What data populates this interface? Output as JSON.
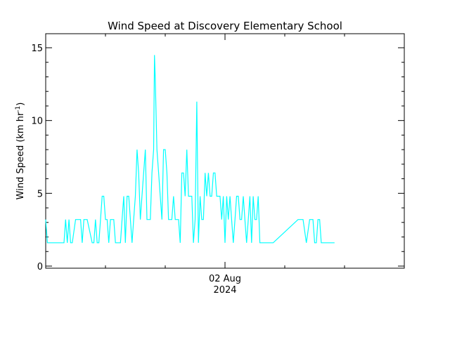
{
  "chart_data": {
    "type": "line",
    "title": "Wind Speed at Discovery Elementary School",
    "ylabel_main": "Wind Speed (km hr",
    "ylabel_sup": "-1",
    "ylabel_close": ")",
    "ylim": [
      0,
      16
    ],
    "yticks": [
      0,
      5,
      10,
      15
    ],
    "xlim": [
      "2024-08-01T00:00",
      "2024-08-04T00:00"
    ],
    "x_tick": {
      "at": "2024-08-02T12:00",
      "label": "02 Aug",
      "sublabel": "2024"
    },
    "grid": false,
    "line_color": "#00ffff",
    "series": [
      {
        "points": [
          [
            "2024-08-01T00:00",
            3.2
          ],
          [
            "2024-08-01T00:20",
            1.6
          ],
          [
            "2024-08-01T03:40",
            1.6
          ],
          [
            "2024-08-01T04:00",
            3.2
          ],
          [
            "2024-08-01T04:20",
            1.6
          ],
          [
            "2024-08-01T04:40",
            3.2
          ],
          [
            "2024-08-01T05:00",
            1.6
          ],
          [
            "2024-08-01T05:20",
            1.6
          ],
          [
            "2024-08-01T06:00",
            3.2
          ],
          [
            "2024-08-01T07:00",
            3.2
          ],
          [
            "2024-08-01T07:20",
            1.6
          ],
          [
            "2024-08-01T07:40",
            3.2
          ],
          [
            "2024-08-01T08:20",
            3.2
          ],
          [
            "2024-08-01T09:20",
            1.6
          ],
          [
            "2024-08-01T09:40",
            1.6
          ],
          [
            "2024-08-01T10:00",
            3.2
          ],
          [
            "2024-08-01T10:20",
            1.6
          ],
          [
            "2024-08-01T10:40",
            1.6
          ],
          [
            "2024-08-01T11:20",
            4.8
          ],
          [
            "2024-08-01T11:40",
            4.8
          ],
          [
            "2024-08-01T12:00",
            3.2
          ],
          [
            "2024-08-01T12:20",
            3.2
          ],
          [
            "2024-08-01T12:40",
            1.6
          ],
          [
            "2024-08-01T13:00",
            3.2
          ],
          [
            "2024-08-01T13:40",
            3.2
          ],
          [
            "2024-08-01T14:00",
            1.6
          ],
          [
            "2024-08-01T15:00",
            1.6
          ],
          [
            "2024-08-01T15:20",
            3.2
          ],
          [
            "2024-08-01T15:40",
            4.8
          ],
          [
            "2024-08-01T16:00",
            1.6
          ],
          [
            "2024-08-01T16:20",
            4.8
          ],
          [
            "2024-08-01T16:40",
            4.8
          ],
          [
            "2024-08-01T17:20",
            1.6
          ],
          [
            "2024-08-01T17:40",
            3.2
          ],
          [
            "2024-08-01T18:00",
            4.8
          ],
          [
            "2024-08-01T18:20",
            8.0
          ],
          [
            "2024-08-01T18:40",
            6.4
          ],
          [
            "2024-08-01T19:00",
            3.2
          ],
          [
            "2024-08-01T19:20",
            4.8
          ],
          [
            "2024-08-01T19:40",
            6.4
          ],
          [
            "2024-08-01T20:00",
            8.0
          ],
          [
            "2024-08-01T20:20",
            3.2
          ],
          [
            "2024-08-01T21:00",
            3.2
          ],
          [
            "2024-08-01T21:20",
            6.4
          ],
          [
            "2024-08-01T21:40",
            8.0
          ],
          [
            "2024-08-01T21:50",
            14.5
          ],
          [
            "2024-08-01T22:00",
            12.9
          ],
          [
            "2024-08-01T22:20",
            8.0
          ],
          [
            "2024-08-01T22:40",
            6.4
          ],
          [
            "2024-08-01T23:00",
            4.8
          ],
          [
            "2024-08-01T23:20",
            3.2
          ],
          [
            "2024-08-01T23:40",
            8.0
          ],
          [
            "2024-08-02T00:00",
            8.0
          ],
          [
            "2024-08-02T00:20",
            6.4
          ],
          [
            "2024-08-02T00:40",
            3.2
          ],
          [
            "2024-08-02T01:20",
            3.2
          ],
          [
            "2024-08-02T01:40",
            4.8
          ],
          [
            "2024-08-02T02:00",
            3.2
          ],
          [
            "2024-08-02T02:40",
            3.2
          ],
          [
            "2024-08-02T03:00",
            1.6
          ],
          [
            "2024-08-02T03:20",
            6.4
          ],
          [
            "2024-08-02T03:40",
            6.4
          ],
          [
            "2024-08-02T04:00",
            4.8
          ],
          [
            "2024-08-02T04:20",
            8.0
          ],
          [
            "2024-08-02T04:40",
            4.8
          ],
          [
            "2024-08-02T05:20",
            4.8
          ],
          [
            "2024-08-02T05:40",
            1.6
          ],
          [
            "2024-08-02T06:00",
            3.2
          ],
          [
            "2024-08-02T06:20",
            11.3
          ],
          [
            "2024-08-02T06:40",
            1.6
          ],
          [
            "2024-08-02T07:00",
            4.8
          ],
          [
            "2024-08-02T07:20",
            3.2
          ],
          [
            "2024-08-02T07:40",
            3.2
          ],
          [
            "2024-08-02T08:00",
            6.4
          ],
          [
            "2024-08-02T08:20",
            4.8
          ],
          [
            "2024-08-02T08:40",
            6.4
          ],
          [
            "2024-08-02T09:00",
            4.8
          ],
          [
            "2024-08-02T09:20",
            4.8
          ],
          [
            "2024-08-02T09:40",
            6.4
          ],
          [
            "2024-08-02T10:00",
            6.4
          ],
          [
            "2024-08-02T10:20",
            4.8
          ],
          [
            "2024-08-02T11:00",
            4.8
          ],
          [
            "2024-08-02T11:20",
            3.2
          ],
          [
            "2024-08-02T11:40",
            4.8
          ],
          [
            "2024-08-02T12:00",
            1.6
          ],
          [
            "2024-08-02T12:20",
            4.8
          ],
          [
            "2024-08-02T12:40",
            3.2
          ],
          [
            "2024-08-02T13:00",
            4.8
          ],
          [
            "2024-08-02T13:20",
            3.2
          ],
          [
            "2024-08-02T13:40",
            1.6
          ],
          [
            "2024-08-02T14:00",
            3.2
          ],
          [
            "2024-08-02T14:20",
            4.8
          ],
          [
            "2024-08-02T14:40",
            4.8
          ],
          [
            "2024-08-02T15:00",
            3.2
          ],
          [
            "2024-08-02T15:20",
            3.2
          ],
          [
            "2024-08-02T15:40",
            4.8
          ],
          [
            "2024-08-02T16:00",
            3.2
          ],
          [
            "2024-08-02T16:20",
            1.6
          ],
          [
            "2024-08-02T16:40",
            3.2
          ],
          [
            "2024-08-02T17:00",
            4.8
          ],
          [
            "2024-08-02T17:20",
            1.6
          ],
          [
            "2024-08-02T17:40",
            4.8
          ],
          [
            "2024-08-02T18:00",
            3.2
          ],
          [
            "2024-08-02T18:20",
            3.2
          ],
          [
            "2024-08-02T18:40",
            4.8
          ],
          [
            "2024-08-02T19:00",
            1.6
          ],
          [
            "2024-08-02T21:40",
            1.6
          ],
          [
            "2024-08-03T02:40",
            3.2
          ],
          [
            "2024-08-03T03:40",
            3.2
          ],
          [
            "2024-08-03T04:20",
            1.6
          ],
          [
            "2024-08-03T05:00",
            3.2
          ],
          [
            "2024-08-03T05:40",
            3.2
          ],
          [
            "2024-08-03T06:00",
            1.6
          ],
          [
            "2024-08-03T06:20",
            1.6
          ],
          [
            "2024-08-03T06:40",
            3.2
          ],
          [
            "2024-08-03T07:00",
            3.2
          ],
          [
            "2024-08-03T07:20",
            1.6
          ],
          [
            "2024-08-03T10:00",
            1.6
          ]
        ]
      }
    ]
  }
}
